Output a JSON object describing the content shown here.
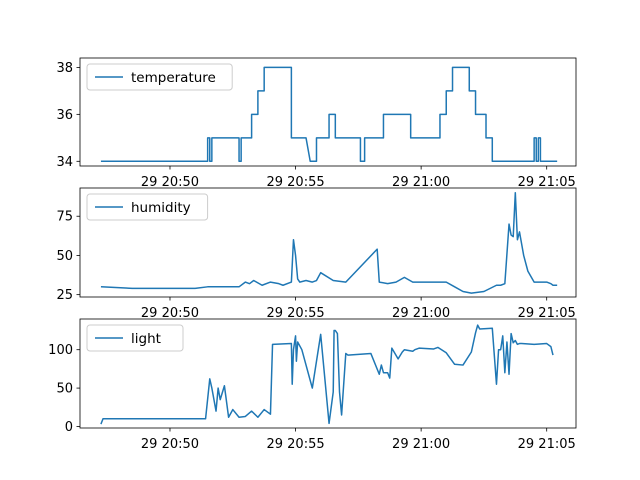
{
  "chart_data": [
    {
      "type": "line",
      "ylim": [
        33.8,
        38.4
      ],
      "yticks": [
        34,
        36,
        38
      ],
      "xticks": [
        "29 20:50",
        "29 20:55",
        "29 21:00",
        "29 21:05"
      ],
      "series": [
        {
          "name": "temperature",
          "color": "#1f77b4",
          "x": [
            "20:47:15",
            "20:51:30",
            "20:51:30",
            "20:51:35",
            "20:51:35",
            "20:51:40",
            "20:51:40",
            "20:52:45",
            "20:52:45",
            "20:52:50",
            "20:52:50",
            "20:53:15",
            "20:53:15",
            "20:53:30",
            "20:53:30",
            "20:53:45",
            "20:53:45",
            "20:54:50",
            "20:54:50",
            "20:55:25",
            "20:55:35",
            "20:55:50",
            "20:55:50",
            "20:56:20",
            "20:56:20",
            "20:56:35",
            "20:56:35",
            "20:57:35",
            "20:57:35",
            "20:57:45",
            "20:57:45",
            "20:58:30",
            "20:58:30",
            "20:59:35",
            "20:59:35",
            "21:00:45",
            "21:00:45",
            "21:01:00",
            "21:01:00",
            "21:01:15",
            "21:01:15",
            "21:01:55",
            "21:01:55",
            "21:02:10",
            "21:02:10",
            "21:02:35",
            "21:02:35",
            "21:02:50",
            "21:02:50",
            "21:04:30",
            "21:04:30",
            "21:04:35",
            "21:04:35",
            "21:04:40",
            "21:04:40",
            "21:04:45",
            "21:04:45",
            "21:05:25"
          ],
          "values": [
            34,
            34,
            35,
            35,
            34,
            34,
            35,
            35,
            34,
            34,
            35,
            35,
            36,
            36,
            37,
            37,
            38,
            38,
            35,
            35,
            34,
            34,
            35,
            35,
            36,
            36,
            35,
            35,
            34,
            34,
            35,
            35,
            36,
            36,
            35,
            35,
            36,
            36,
            37,
            37,
            38,
            38,
            37,
            37,
            36,
            36,
            35,
            35,
            34,
            34,
            35,
            35,
            34,
            34,
            35,
            35,
            34,
            34
          ]
        }
      ]
    },
    {
      "type": "line",
      "ylim": [
        23.5,
        93
      ],
      "yticks": [
        25,
        50,
        75
      ],
      "xticks": [
        "29 20:50",
        "29 20:55",
        "29 21:00",
        "29 21:05"
      ],
      "series": [
        {
          "name": "humidity",
          "color": "#1f77b4",
          "x": [
            "20:47:15",
            "20:48:30",
            "20:49:00",
            "20:50:00",
            "20:50:30",
            "20:51:00",
            "20:51:30",
            "20:52:00",
            "20:52:45",
            "20:53:00",
            "20:53:10",
            "20:53:20",
            "20:53:40",
            "20:54:00",
            "20:54:20",
            "20:54:30",
            "20:54:50",
            "20:54:55",
            "20:55:00",
            "20:55:05",
            "20:55:10",
            "20:55:25",
            "20:55:40",
            "20:55:50",
            "20:56:00",
            "20:56:30",
            "20:57:00",
            "20:58:15",
            "20:58:20",
            "20:58:40",
            "20:59:00",
            "20:59:20",
            "20:59:40",
            "21:00:00",
            "21:00:40",
            "21:01:00",
            "21:01:20",
            "21:01:40",
            "21:02:00",
            "21:02:30",
            "21:03:00",
            "21:03:10",
            "21:03:20",
            "21:03:30",
            "21:03:35",
            "21:03:40",
            "21:03:45",
            "21:03:50",
            "21:03:55",
            "21:04:05",
            "21:04:15",
            "21:04:30",
            "21:05:00",
            "21:05:10",
            "21:05:15",
            "21:05:25"
          ],
          "values": [
            30,
            29,
            29,
            29,
            29,
            29,
            30,
            30,
            30,
            33,
            32,
            34,
            31,
            33,
            32,
            31,
            33,
            60,
            50,
            35,
            33,
            34,
            33,
            34,
            39,
            34,
            33,
            54,
            33,
            32,
            33,
            36,
            33,
            33,
            33,
            33,
            30,
            27,
            26,
            27,
            31,
            31,
            32,
            70,
            63,
            62,
            90,
            60,
            65,
            50,
            40,
            33,
            33,
            32,
            31,
            31
          ]
        }
      ]
    },
    {
      "type": "line",
      "ylim": [
        -2,
        140
      ],
      "yticks": [
        0,
        50,
        100
      ],
      "xticks": [
        "29 20:50",
        "29 20:55",
        "29 21:00",
        "29 21:05"
      ],
      "series": [
        {
          "name": "light",
          "color": "#1f77b4",
          "x": [
            "20:47:15",
            "20:47:20",
            "20:51:25",
            "20:51:35",
            "20:51:40",
            "20:51:50",
            "20:51:55",
            "20:52:00",
            "20:52:10",
            "20:52:20",
            "20:52:30",
            "20:52:45",
            "20:53:00",
            "20:53:15",
            "20:53:30",
            "20:53:45",
            "20:54:00",
            "20:54:05",
            "20:54:50",
            "20:54:52",
            "20:54:55",
            "20:55:00",
            "20:55:02",
            "20:55:05",
            "20:55:15",
            "20:55:25",
            "20:55:40",
            "20:56:00",
            "20:56:20",
            "20:56:30",
            "20:56:32",
            "20:56:35",
            "20:56:40",
            "20:56:45",
            "20:56:50",
            "20:57:00",
            "20:57:05",
            "20:58:00",
            "20:58:20",
            "20:58:25",
            "20:58:30",
            "20:58:40",
            "20:58:45",
            "20:58:50",
            "20:59:05",
            "20:59:15",
            "20:59:20",
            "20:59:40",
            "20:59:45",
            "20:59:55",
            "21:00:30",
            "21:00:40",
            "21:01:00",
            "21:01:20",
            "21:01:40",
            "21:02:00",
            "21:02:10",
            "21:02:15",
            "21:02:20",
            "21:02:50",
            "21:03:00",
            "21:03:05",
            "21:03:10",
            "21:03:15",
            "21:03:20",
            "21:03:25",
            "21:03:30",
            "21:03:35",
            "21:03:40",
            "21:03:45",
            "21:03:50",
            "21:03:55",
            "21:04:00",
            "21:04:30",
            "21:05:00",
            "21:05:10",
            "21:05:15"
          ],
          "values": [
            3,
            10,
            10,
            62,
            50,
            20,
            50,
            35,
            53,
            12,
            22,
            12,
            13,
            20,
            12,
            22,
            16,
            107,
            108,
            55,
            100,
            118,
            85,
            110,
            100,
            80,
            50,
            120,
            4,
            45,
            125,
            125,
            121,
            45,
            15,
            95,
            93,
            95,
            68,
            80,
            70,
            70,
            63,
            102,
            88,
            97,
            100,
            98,
            100,
            102,
            101,
            103,
            96,
            81,
            80,
            97,
            122,
            132,
            127,
            128,
            55,
            100,
            100,
            118,
            70,
            110,
            68,
            121,
            109,
            112,
            107,
            108,
            108,
            107,
            108,
            104,
            93
          ]
        }
      ]
    }
  ]
}
